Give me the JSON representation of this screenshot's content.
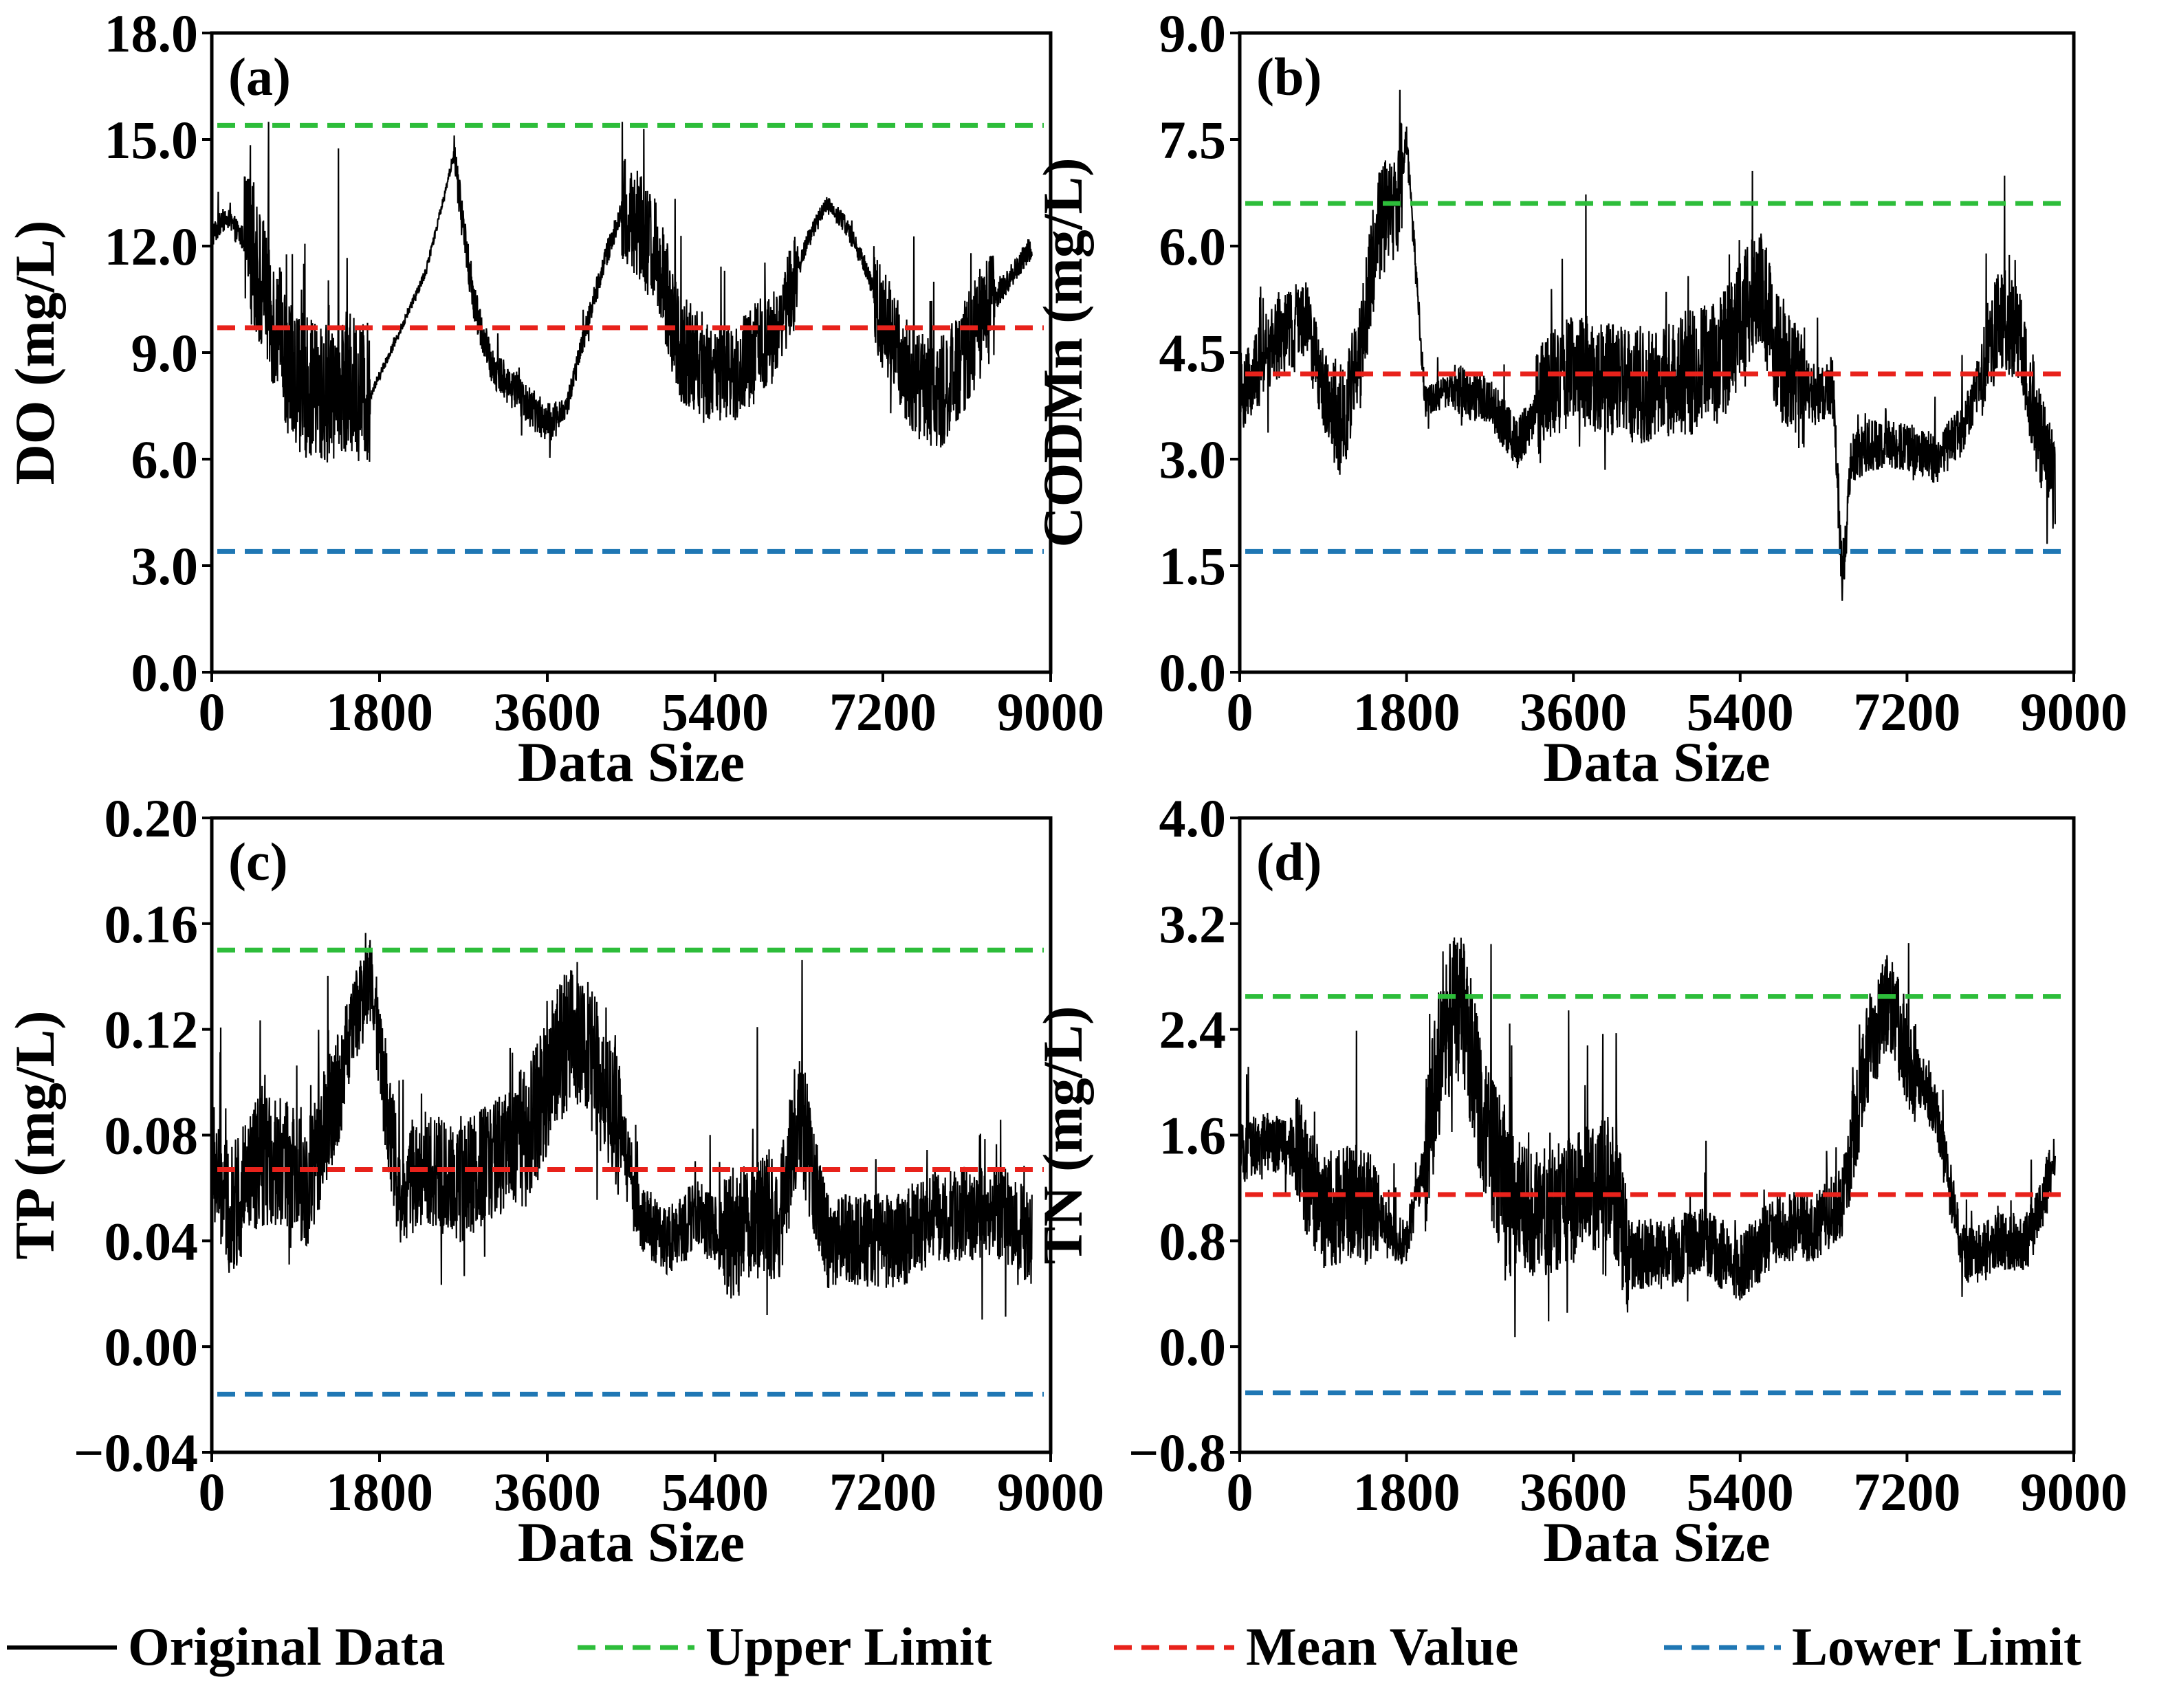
{
  "legend": {
    "original": "Original Data",
    "upper": "Upper Limit",
    "mean": "Mean Value",
    "lower": "Lower Limit"
  },
  "colors": {
    "original": "#000000",
    "upper": "#2dbd3a",
    "mean": "#e8221b",
    "lower": "#1f77b4"
  },
  "chart_data": [
    {
      "type": "line",
      "panel": "(a)",
      "ylabel": "DO (mg/L)",
      "xlabel": "Data Size",
      "xlim": [
        0,
        9000
      ],
      "ylim": [
        0,
        18
      ],
      "xticks": [
        0,
        1800,
        3600,
        5400,
        7200,
        9000
      ],
      "xtick_labels": [
        "0",
        "1800",
        "3600",
        "5400",
        "7200",
        "9000"
      ],
      "yticks": [
        0,
        3,
        6,
        9,
        12,
        15,
        18
      ],
      "ytick_labels": [
        "0.0",
        "3.0",
        "6.0",
        "9.0",
        "12.0",
        "15.0",
        "18.0"
      ],
      "upper": 15.4,
      "mean": 9.7,
      "lower": 3.4,
      "n_points": 8800,
      "series_trend": {
        "x": [
          0,
          150,
          400,
          600,
          800,
          1000,
          1200,
          1400,
          1700,
          2000,
          2300,
          2600,
          2800,
          3000,
          3300,
          3600,
          3800,
          4000,
          4200,
          4400,
          4600,
          4800,
          5000,
          5200,
          5400,
          5600,
          5800,
          6000,
          6200,
          6400,
          6600,
          6800,
          7000,
          7200,
          7400,
          7600,
          7800,
          8000,
          8200,
          8400,
          8800
        ],
        "y": [
          12.3,
          12.8,
          12.0,
          10.5,
          8.8,
          8.0,
          7.8,
          8.2,
          7.8,
          9.5,
          11.3,
          14.6,
          10.5,
          8.6,
          7.8,
          7.0,
          7.4,
          9.5,
          11.5,
          13.0,
          12.6,
          11.5,
          9.3,
          8.7,
          8.3,
          8.4,
          9.0,
          9.5,
          10.6,
          12.2,
          13.2,
          12.6,
          11.5,
          10.0,
          8.8,
          8.0,
          7.8,
          8.5,
          9.6,
          10.5,
          12.0
        ]
      },
      "series_noise": {
        "segments": [
          {
            "x": [
              0,
              350
            ],
            "amp": 0.8
          },
          {
            "x": [
              350,
              1700
            ],
            "amp": 4.5
          },
          {
            "x": [
              1700,
              2600
            ],
            "amp": 0.3
          },
          {
            "x": [
              2600,
              3700
            ],
            "amp": 1.3
          },
          {
            "x": [
              3700,
              4400
            ],
            "amp": 0.8
          },
          {
            "x": [
              4400,
              5300
            ],
            "amp": 3.5
          },
          {
            "x": [
              5300,
              6300
            ],
            "amp": 3.0
          },
          {
            "x": [
              6300,
              7100
            ],
            "amp": 0.6
          },
          {
            "x": [
              7100,
              8400
            ],
            "amp": 3.5
          },
          {
            "x": [
              8400,
              8800
            ],
            "amp": 0.8
          }
        ],
        "clip": [
          4.8,
          15.5
        ]
      }
    },
    {
      "type": "line",
      "panel": "(b)",
      "ylabel": "CODMn (mg/L)",
      "xlabel": "Data Size",
      "xlim": [
        0,
        9000
      ],
      "ylim": [
        0,
        9
      ],
      "xticks": [
        0,
        1800,
        3600,
        5400,
        7200,
        9000
      ],
      "xtick_labels": [
        "0",
        "1800",
        "3600",
        "5400",
        "7200",
        "9000"
      ],
      "yticks": [
        0,
        1.5,
        3,
        4.5,
        6,
        7.5,
        9
      ],
      "ytick_labels": [
        "0.0",
        "1.5",
        "3.0",
        "4.5",
        "6.0",
        "7.5",
        "9.0"
      ],
      "upper": 6.6,
      "mean": 4.2,
      "lower": 1.7,
      "n_points": 8800,
      "series_trend": {
        "x": [
          0,
          400,
          700,
          900,
          1100,
          1300,
          1500,
          1700,
          1800,
          2000,
          2300,
          2700,
          3000,
          3300,
          3600,
          4000,
          4400,
          4800,
          5200,
          5600,
          5800,
          6000,
          6200,
          6400,
          6500,
          6600,
          6800,
          7200,
          7500,
          7800,
          8000,
          8200,
          8400,
          8600,
          8800
        ],
        "y": [
          3.9,
          4.7,
          5.0,
          4.0,
          3.5,
          4.5,
          6.3,
          6.6,
          7.5,
          3.8,
          4.0,
          3.8,
          3.2,
          4.0,
          4.3,
          4.1,
          4.0,
          4.2,
          4.4,
          5.5,
          4.5,
          4.0,
          3.9,
          4.0,
          1.2,
          3.0,
          3.2,
          3.2,
          3.0,
          3.4,
          4.2,
          5.0,
          4.8,
          3.5,
          2.6
        ]
      },
      "series_noise": {
        "segments": [
          {
            "x": [
              0,
              1000
            ],
            "amp": 1.3
          },
          {
            "x": [
              1000,
              1750
            ],
            "amp": 1.8
          },
          {
            "x": [
              1750,
              2300
            ],
            "amp": 0.5
          },
          {
            "x": [
              2300,
              3200
            ],
            "amp": 0.8
          },
          {
            "x": [
              3200,
              4800
            ],
            "amp": 1.8
          },
          {
            "x": [
              4800,
              6100
            ],
            "amp": 2.0
          },
          {
            "x": [
              6100,
              6500
            ],
            "amp": 1.0
          },
          {
            "x": [
              6500,
              8000
            ],
            "amp": 0.8
          },
          {
            "x": [
              8000,
              8800
            ],
            "amp": 1.6
          }
        ],
        "clip": [
          0.7,
          8.2
        ]
      }
    },
    {
      "type": "line",
      "panel": "(c)",
      "ylabel": "TP (mg/L)",
      "xlabel": "Data Size",
      "xlim": [
        0,
        9000
      ],
      "ylim": [
        -0.04,
        0.2
      ],
      "xticks": [
        0,
        1800,
        3600,
        5400,
        7200,
        9000
      ],
      "xtick_labels": [
        "0",
        "1800",
        "3600",
        "5400",
        "7200",
        "9000"
      ],
      "yticks": [
        -0.04,
        0,
        0.04,
        0.08,
        0.12,
        0.16,
        0.2
      ],
      "ytick_labels": [
        "−0.04",
        "0.00",
        "0.04",
        "0.08",
        "0.12",
        "0.16",
        "0.20"
      ],
      "upper": 0.15,
      "mean": 0.067,
      "lower": -0.018,
      "n_points": 8800,
      "series_trend": {
        "x": [
          0,
          200,
          500,
          800,
          1000,
          1200,
          1500,
          1700,
          2000,
          2300,
          2600,
          3000,
          3400,
          3700,
          3900,
          4200,
          4400,
          4600,
          4900,
          5200,
          5500,
          5800,
          6100,
          6300,
          6600,
          7000,
          7400,
          7800,
          8200,
          8500,
          8800
        ],
        "y": [
          0.07,
          0.05,
          0.07,
          0.07,
          0.06,
          0.08,
          0.12,
          0.14,
          0.06,
          0.07,
          0.06,
          0.07,
          0.08,
          0.11,
          0.12,
          0.1,
          0.08,
          0.05,
          0.04,
          0.05,
          0.04,
          0.05,
          0.05,
          0.09,
          0.04,
          0.04,
          0.04,
          0.05,
          0.05,
          0.05,
          0.04
        ]
      },
      "series_noise": {
        "segments": [
          {
            "x": [
              0,
              1400
            ],
            "amp": 0.055
          },
          {
            "x": [
              1400,
              1800
            ],
            "amp": 0.04
          },
          {
            "x": [
              1800,
              3300
            ],
            "amp": 0.05
          },
          {
            "x": [
              3300,
              4400
            ],
            "amp": 0.06
          },
          {
            "x": [
              4400,
              5500
            ],
            "amp": 0.03
          },
          {
            "x": [
              5500,
              6500
            ],
            "amp": 0.055
          },
          {
            "x": [
              6500,
              8800
            ],
            "amp": 0.04
          }
        ],
        "clip": [
          0.005,
          0.173
        ]
      }
    },
    {
      "type": "line",
      "panel": "(d)",
      "ylabel": "TN (mg/L)",
      "xlabel": "Data Size",
      "xlim": [
        0,
        9000
      ],
      "ylim": [
        -0.8,
        4
      ],
      "xticks": [
        0,
        1800,
        3600,
        5400,
        7200,
        9000
      ],
      "xtick_labels": [
        "0",
        "1800",
        "3600",
        "5400",
        "7200",
        "9000"
      ],
      "yticks": [
        -0.8,
        0,
        0.8,
        1.6,
        2.4,
        3.2,
        4
      ],
      "ytick_labels": [
        "−0.8",
        "0.0",
        "0.8",
        "1.6",
        "2.4",
        "3.2",
        "4.0"
      ],
      "upper": 2.65,
      "mean": 1.15,
      "lower": -0.35,
      "n_points": 8800,
      "series_trend": {
        "x": [
          0,
          300,
          600,
          900,
          1200,
          1500,
          1700,
          1800,
          2000,
          2200,
          2400,
          2600,
          2900,
          3200,
          3600,
          4000,
          4200,
          4600,
          5000,
          5400,
          5800,
          6200,
          6500,
          6800,
          7000,
          7200,
          7500,
          7800,
          8000,
          8200,
          8500,
          8800
        ],
        "y": [
          1.45,
          1.55,
          1.5,
          1.0,
          1.1,
          1.0,
          0.8,
          0.8,
          1.4,
          2.4,
          2.6,
          1.8,
          1.1,
          1.0,
          1.1,
          1.3,
          0.7,
          0.7,
          0.8,
          0.6,
          0.9,
          0.9,
          1.1,
          2.3,
          2.6,
          2.2,
          1.8,
          0.7,
          0.7,
          0.8,
          0.8,
          1.4
        ]
      },
      "series_noise": {
        "segments": [
          {
            "x": [
              0,
              600
            ],
            "amp": 0.5
          },
          {
            "x": [
              600,
              1500
            ],
            "amp": 1.0
          },
          {
            "x": [
              1500,
              2000
            ],
            "amp": 0.4
          },
          {
            "x": [
              2000,
              3000
            ],
            "amp": 1.3
          },
          {
            "x": [
              3000,
              4200
            ],
            "amp": 1.1
          },
          {
            "x": [
              4200,
              6600
            ],
            "amp": 0.6
          },
          {
            "x": [
              6600,
              7300
            ],
            "amp": 0.9
          },
          {
            "x": [
              7300,
              8800
            ],
            "amp": 0.5
          }
        ],
        "clip": [
          0.05,
          3.35
        ]
      }
    }
  ]
}
